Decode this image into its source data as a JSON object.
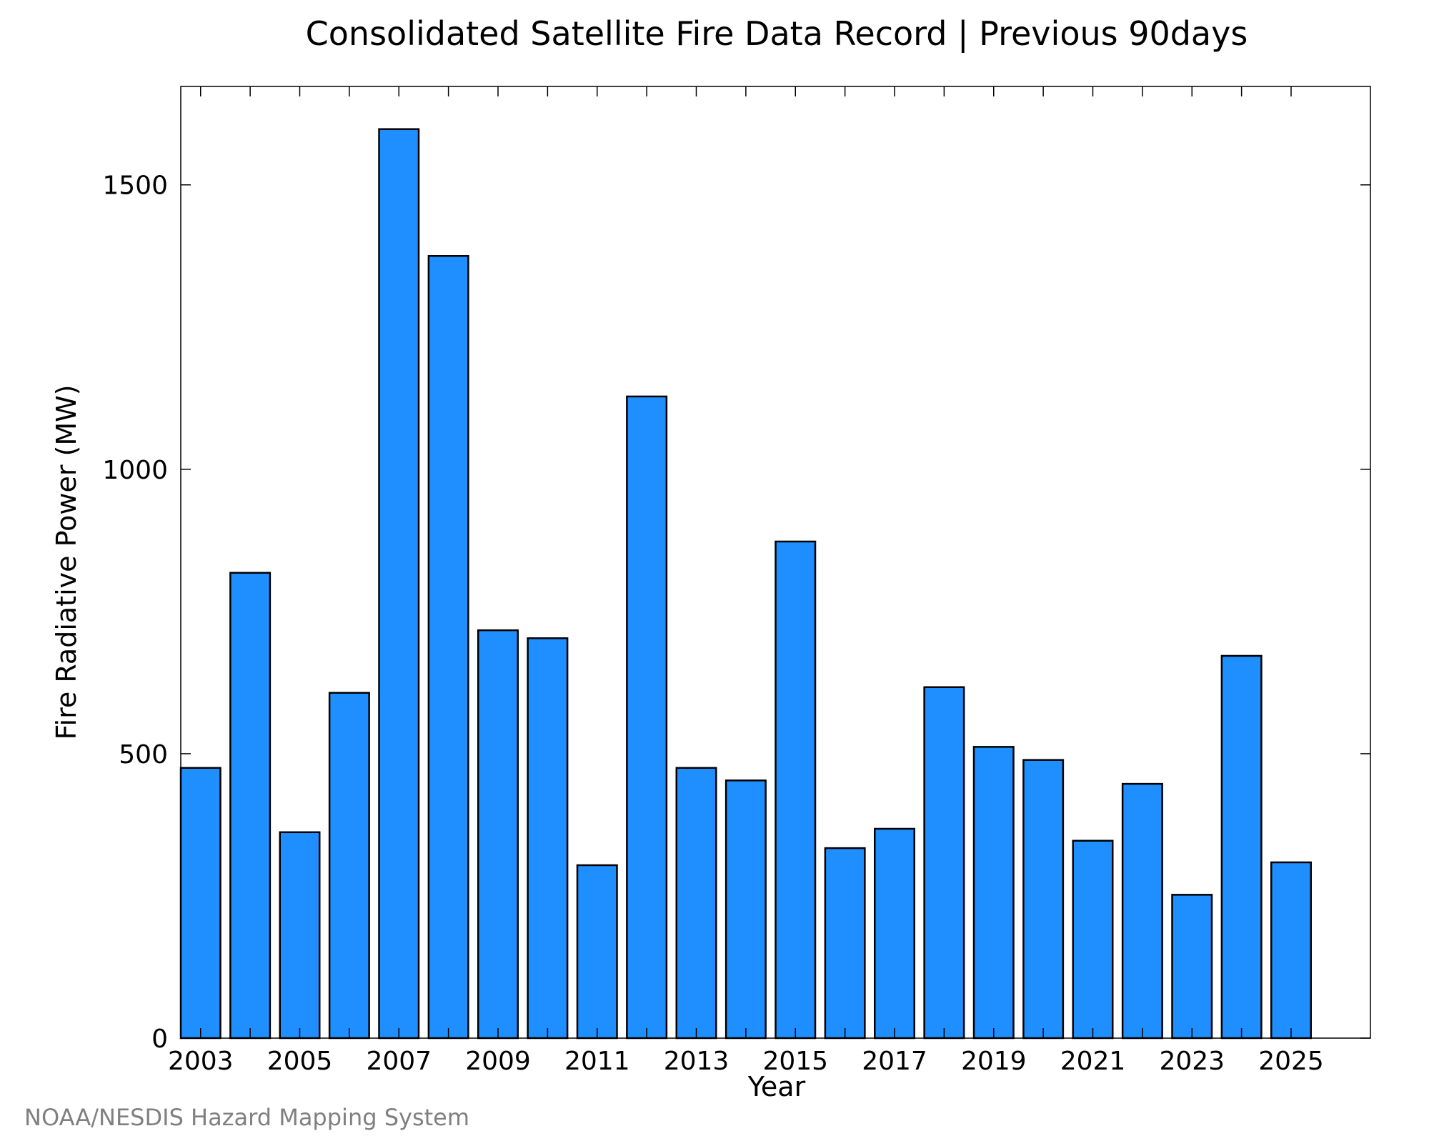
{
  "chart_data": {
    "type": "bar",
    "title": "Consolidated Satellite Fire Data Record | Previous 90days",
    "xlabel": "Year",
    "ylabel": "Fire Radiative Power (MW)",
    "categories": [
      "2003",
      "2004",
      "2005",
      "2006",
      "2007",
      "2008",
      "2009",
      "2010",
      "2011",
      "2012",
      "2013",
      "2014",
      "2015",
      "2016",
      "2017",
      "2018",
      "2019",
      "2020",
      "2021",
      "2022",
      "2023",
      "2024",
      "2025"
    ],
    "values": [
      475,
      818,
      362,
      607,
      1598,
      1375,
      717,
      703,
      304,
      1128,
      475,
      453,
      873,
      334,
      368,
      617,
      512,
      489,
      347,
      447,
      252,
      672,
      309
    ],
    "x_tick_labels": [
      "2003",
      "2005",
      "2007",
      "2009",
      "2011",
      "2013",
      "2015",
      "2017",
      "2019",
      "2021",
      "2023",
      "2025"
    ],
    "y_ticks": [
      0,
      500,
      1000,
      1500
    ],
    "y_tick_labels": [
      "0",
      "500",
      "1000",
      "1500"
    ],
    "xlim": [
      2002.6,
      2026.6
    ],
    "ylim": [
      0,
      1673
    ],
    "grid": false,
    "legend": "none",
    "bar_color": "#1f8fff",
    "edge_color": "#000000"
  },
  "credit": "NOAA/NESDIS Hazard Mapping System"
}
